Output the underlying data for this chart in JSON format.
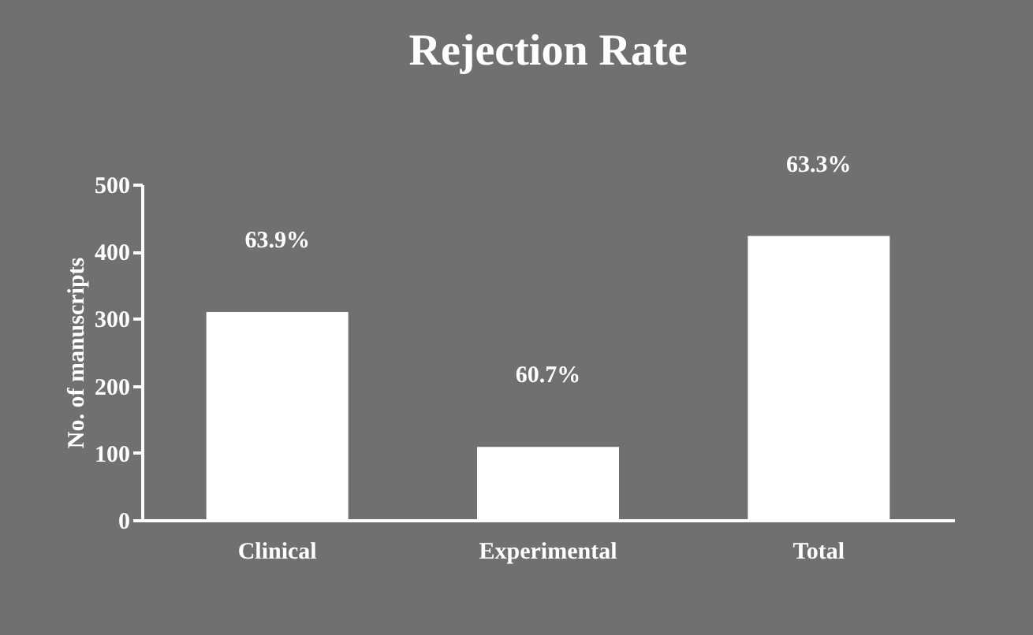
{
  "chart_data": {
    "type": "bar",
    "title": "Rejection Rate",
    "ylabel": "No. of manuscripts",
    "categories": [
      "Clinical",
      "Experimental",
      "Total"
    ],
    "values": [
      310,
      109,
      423
    ],
    "color": "#ffffff",
    "annotations": [
      "63.9%",
      "60.7%",
      "63.3%"
    ],
    "ylim": [
      0,
      500
    ],
    "yticks": [
      0,
      100,
      200,
      300,
      400,
      500
    ],
    "grid": false
  }
}
